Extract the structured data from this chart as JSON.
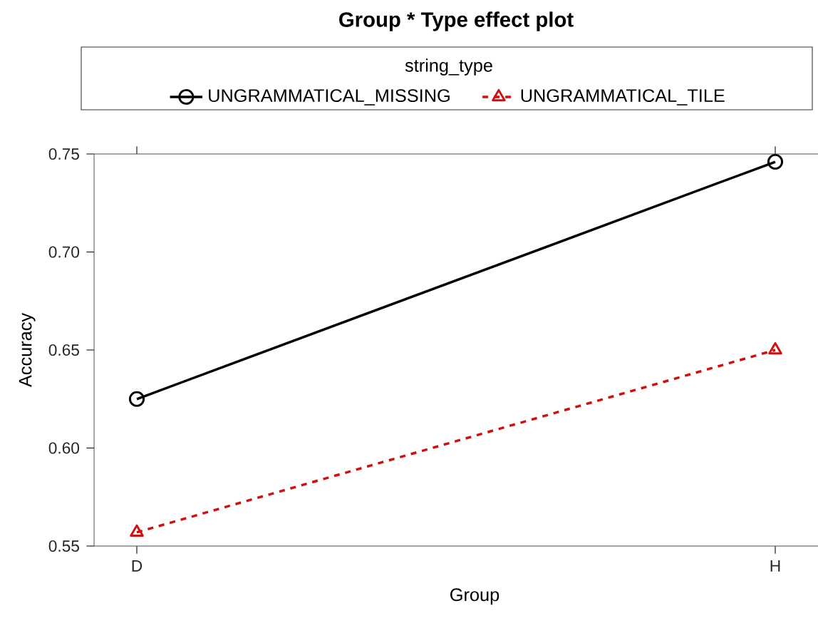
{
  "chart_data": {
    "type": "line",
    "title": "Group * Type effect plot",
    "xlabel": "Group",
    "ylabel": "Accuracy",
    "legend_title": "string_type",
    "legend": "top",
    "categories": [
      "D",
      "H"
    ],
    "series": [
      {
        "name": "UNGRAMMATICAL_MISSING",
        "color": "#000000",
        "values": [
          0.625,
          0.746
        ],
        "marker": "circle",
        "line_style": "solid"
      },
      {
        "name": "UNGRAMMATICAL_TILE",
        "color": "#d01010",
        "values": [
          0.557,
          0.65
        ],
        "marker": "triangle",
        "line_style": "dashed"
      }
    ],
    "ylim": [
      0.55,
      0.75
    ],
    "yticks": [
      {
        "value": 0.55,
        "label": "0.55"
      },
      {
        "value": 0.6,
        "label": "0.60"
      },
      {
        "value": 0.65,
        "label": "0.65"
      },
      {
        "value": 0.7,
        "label": "0.70"
      },
      {
        "value": 0.75,
        "label": "0.75"
      }
    ]
  }
}
